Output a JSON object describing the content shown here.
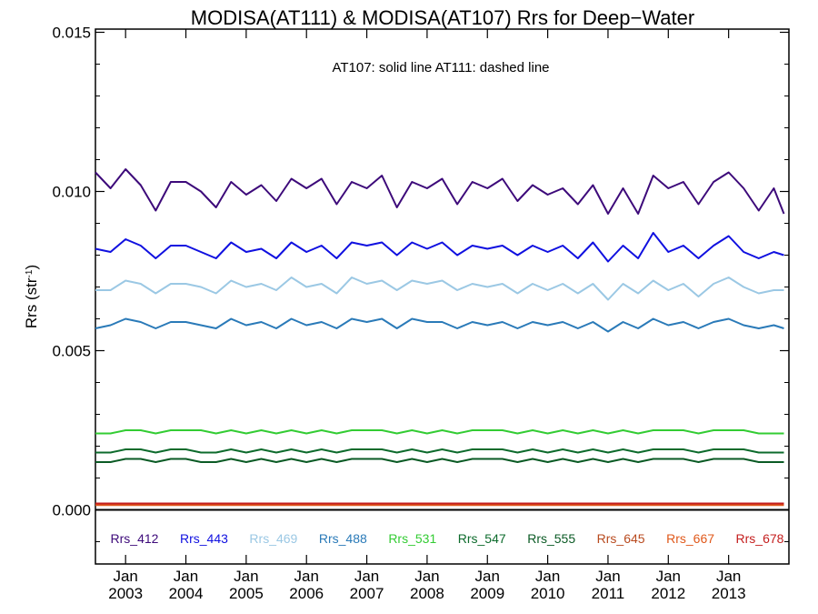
{
  "chart_data": {
    "type": "line",
    "title": "MODISA(AT111) & MODISA(AT107)  Rrs for Deep−Water",
    "ylabel": "Rrs (str",
    "ylabel_sup": "-1",
    "ylabel_close": ")",
    "annotation": "AT107: solid line   AT111: dashed line",
    "ylim": [
      -0.0017,
      0.0151
    ],
    "yticks": [
      0.0,
      0.005,
      0.01,
      0.015
    ],
    "ytick_labels": [
      "0.000",
      "0.005",
      "0.010",
      "0.015"
    ],
    "xlim": [
      "2002-07",
      "2014-01"
    ],
    "xticks": [
      {
        "date": "2003-01",
        "month": "Jan",
        "year": "2003"
      },
      {
        "date": "2004-01",
        "month": "Jan",
        "year": "2004"
      },
      {
        "date": "2005-01",
        "month": "Jan",
        "year": "2005"
      },
      {
        "date": "2006-01",
        "month": "Jan",
        "year": "2006"
      },
      {
        "date": "2007-01",
        "month": "Jan",
        "year": "2007"
      },
      {
        "date": "2008-01",
        "month": "Jan",
        "year": "2008"
      },
      {
        "date": "2009-01",
        "month": "Jan",
        "year": "2009"
      },
      {
        "date": "2010-01",
        "month": "Jan",
        "year": "2010"
      },
      {
        "date": "2011-01",
        "month": "Jan",
        "year": "2011"
      },
      {
        "date": "2012-01",
        "month": "Jan",
        "year": "2012"
      },
      {
        "date": "2013-01",
        "month": "Jan",
        "year": "2013"
      }
    ],
    "zero_line": 0.0,
    "x_dates": [
      "2002-07",
      "2002-10",
      "2003-01",
      "2003-04",
      "2003-07",
      "2003-10",
      "2004-01",
      "2004-04",
      "2004-07",
      "2004-10",
      "2005-01",
      "2005-04",
      "2005-07",
      "2005-10",
      "2006-01",
      "2006-04",
      "2006-07",
      "2006-10",
      "2007-01",
      "2007-04",
      "2007-07",
      "2007-10",
      "2008-01",
      "2008-04",
      "2008-07",
      "2008-10",
      "2009-01",
      "2009-04",
      "2009-07",
      "2009-10",
      "2010-01",
      "2010-04",
      "2010-07",
      "2010-10",
      "2011-01",
      "2011-04",
      "2011-07",
      "2011-10",
      "2012-01",
      "2012-04",
      "2012-07",
      "2012-10",
      "2013-01",
      "2013-04",
      "2013-07",
      "2013-10",
      "2013-12"
    ],
    "series": [
      {
        "name": "Rrs_412",
        "color": "#3d0a7a",
        "values": [
          0.0106,
          0.0101,
          0.0107,
          0.0102,
          0.0094,
          0.0103,
          0.0103,
          0.01,
          0.0095,
          0.0103,
          0.0099,
          0.0102,
          0.0097,
          0.0104,
          0.0101,
          0.0104,
          0.0096,
          0.0103,
          0.0101,
          0.0105,
          0.0095,
          0.0103,
          0.0101,
          0.0104,
          0.0096,
          0.0103,
          0.0101,
          0.0104,
          0.0097,
          0.0102,
          0.0099,
          0.0101,
          0.0096,
          0.0102,
          0.0093,
          0.0101,
          0.0093,
          0.0105,
          0.0101,
          0.0103,
          0.0096,
          0.0103,
          0.0106,
          0.0101,
          0.0094,
          0.0101,
          0.0093
        ]
      },
      {
        "name": "Rrs_443",
        "color": "#1010e0",
        "values": [
          0.0082,
          0.0081,
          0.0085,
          0.0083,
          0.0079,
          0.0083,
          0.0083,
          0.0081,
          0.0079,
          0.0084,
          0.0081,
          0.0082,
          0.0079,
          0.0084,
          0.0081,
          0.0083,
          0.0079,
          0.0084,
          0.0083,
          0.0084,
          0.008,
          0.0084,
          0.0082,
          0.0084,
          0.008,
          0.0083,
          0.0082,
          0.0083,
          0.008,
          0.0083,
          0.0081,
          0.0083,
          0.0079,
          0.0084,
          0.0078,
          0.0083,
          0.0079,
          0.0087,
          0.0081,
          0.0083,
          0.0079,
          0.0083,
          0.0086,
          0.0081,
          0.0079,
          0.0081,
          0.008
        ]
      },
      {
        "name": "Rrs_469",
        "color": "#9bc8e4",
        "values": [
          0.0069,
          0.0069,
          0.0072,
          0.0071,
          0.0068,
          0.0071,
          0.0071,
          0.007,
          0.0068,
          0.0072,
          0.007,
          0.0071,
          0.0069,
          0.0073,
          0.007,
          0.0071,
          0.0068,
          0.0073,
          0.0071,
          0.0072,
          0.0069,
          0.0072,
          0.0071,
          0.0072,
          0.0069,
          0.0071,
          0.007,
          0.0071,
          0.0068,
          0.0071,
          0.0069,
          0.0071,
          0.0068,
          0.0071,
          0.0066,
          0.0071,
          0.0068,
          0.0072,
          0.0069,
          0.0071,
          0.0067,
          0.0071,
          0.0073,
          0.007,
          0.0068,
          0.0069,
          0.0069
        ]
      },
      {
        "name": "Rrs_488",
        "color": "#2a7ab8",
        "values": [
          0.0057,
          0.0058,
          0.006,
          0.0059,
          0.0057,
          0.0059,
          0.0059,
          0.0058,
          0.0057,
          0.006,
          0.0058,
          0.0059,
          0.0057,
          0.006,
          0.0058,
          0.0059,
          0.0057,
          0.006,
          0.0059,
          0.006,
          0.0057,
          0.006,
          0.0059,
          0.0059,
          0.0057,
          0.0059,
          0.0058,
          0.0059,
          0.0057,
          0.0059,
          0.0058,
          0.0059,
          0.0057,
          0.0059,
          0.0056,
          0.0059,
          0.0057,
          0.006,
          0.0058,
          0.0059,
          0.0057,
          0.0059,
          0.006,
          0.0058,
          0.0057,
          0.0058,
          0.0057
        ]
      },
      {
        "name": "Rrs_531",
        "color": "#33cc33",
        "values": [
          0.0024,
          0.0024,
          0.0025,
          0.0025,
          0.0024,
          0.0025,
          0.0025,
          0.0025,
          0.0024,
          0.0025,
          0.0024,
          0.0025,
          0.0024,
          0.0025,
          0.0024,
          0.0025,
          0.0024,
          0.0025,
          0.0025,
          0.0025,
          0.0024,
          0.0025,
          0.0024,
          0.0025,
          0.0024,
          0.0025,
          0.0025,
          0.0025,
          0.0024,
          0.0025,
          0.0024,
          0.0025,
          0.0024,
          0.0025,
          0.0024,
          0.0025,
          0.0024,
          0.0025,
          0.0025,
          0.0025,
          0.0024,
          0.0025,
          0.0025,
          0.0025,
          0.0024,
          0.0024,
          0.0024
        ]
      },
      {
        "name": "Rrs_547",
        "color": "#0d6b2c",
        "values": [
          0.0018,
          0.0018,
          0.0019,
          0.0019,
          0.0018,
          0.0019,
          0.0019,
          0.0018,
          0.0018,
          0.0019,
          0.0018,
          0.0019,
          0.0018,
          0.0019,
          0.0018,
          0.0019,
          0.0018,
          0.0019,
          0.0019,
          0.0019,
          0.0018,
          0.0019,
          0.0018,
          0.0019,
          0.0018,
          0.0019,
          0.0019,
          0.0019,
          0.0018,
          0.0019,
          0.0018,
          0.0019,
          0.0018,
          0.0019,
          0.0018,
          0.0019,
          0.0018,
          0.0019,
          0.0019,
          0.0019,
          0.0018,
          0.0019,
          0.0019,
          0.0019,
          0.0018,
          0.0018,
          0.0018
        ]
      },
      {
        "name": "Rrs_555",
        "color": "#0a5a24",
        "values": [
          0.0015,
          0.0015,
          0.0016,
          0.0016,
          0.0015,
          0.0016,
          0.0016,
          0.0015,
          0.0015,
          0.0016,
          0.0015,
          0.0016,
          0.0015,
          0.0016,
          0.0015,
          0.0016,
          0.0015,
          0.0016,
          0.0016,
          0.0016,
          0.0015,
          0.0016,
          0.0015,
          0.0016,
          0.0015,
          0.0016,
          0.0016,
          0.0016,
          0.0015,
          0.0016,
          0.0015,
          0.0016,
          0.0015,
          0.0016,
          0.0015,
          0.0016,
          0.0015,
          0.0016,
          0.0016,
          0.0016,
          0.0015,
          0.0016,
          0.0016,
          0.0016,
          0.0015,
          0.0015,
          0.0015
        ]
      },
      {
        "name": "Rrs_645",
        "color": "#b84a1e",
        "values": [
          0.0002,
          0.0002,
          0.0002,
          0.0002,
          0.0002,
          0.0002,
          0.0002,
          0.0002,
          0.0002,
          0.0002,
          0.0002,
          0.0002,
          0.0002,
          0.0002,
          0.0002,
          0.0002,
          0.0002,
          0.0002,
          0.0002,
          0.0002,
          0.0002,
          0.0002,
          0.0002,
          0.0002,
          0.0002,
          0.0002,
          0.0002,
          0.0002,
          0.0002,
          0.0002,
          0.0002,
          0.0002,
          0.0002,
          0.0002,
          0.0002,
          0.0002,
          0.0002,
          0.0002,
          0.0002,
          0.0002,
          0.0002,
          0.0002,
          0.0002,
          0.0002,
          0.0002,
          0.0002,
          0.0002
        ]
      },
      {
        "name": "Rrs_667",
        "color": "#e0581a",
        "values": [
          0.00015,
          0.00015,
          0.00015,
          0.00015,
          0.00015,
          0.00015,
          0.00015,
          0.00015,
          0.00015,
          0.00015,
          0.00015,
          0.00015,
          0.00015,
          0.00015,
          0.00015,
          0.00015,
          0.00015,
          0.00015,
          0.00015,
          0.00015,
          0.00015,
          0.00015,
          0.00015,
          0.00015,
          0.00015,
          0.00015,
          0.00015,
          0.00015,
          0.00015,
          0.00015,
          0.00015,
          0.00015,
          0.00015,
          0.00015,
          0.00015,
          0.00015,
          0.00015,
          0.00015,
          0.00015,
          0.00015,
          0.00015,
          0.00015,
          0.00015,
          0.00015,
          0.00015,
          0.00015,
          0.00015
        ]
      },
      {
        "name": "Rrs_678",
        "color": "#c41e1e",
        "values": [
          0.0002,
          0.0002,
          0.0002,
          0.0002,
          0.0002,
          0.0002,
          0.0002,
          0.0002,
          0.0002,
          0.0002,
          0.0002,
          0.0002,
          0.0002,
          0.0002,
          0.0002,
          0.0002,
          0.0002,
          0.0002,
          0.0002,
          0.0002,
          0.0002,
          0.0002,
          0.0002,
          0.0002,
          0.0002,
          0.0002,
          0.0002,
          0.0002,
          0.0002,
          0.0002,
          0.0002,
          0.0002,
          0.0002,
          0.0002,
          0.0002,
          0.0002,
          0.0002,
          0.0002,
          0.0002,
          0.0002,
          0.0002,
          0.0002,
          0.0002,
          0.0002,
          0.0002,
          0.0002,
          0.0002
        ]
      }
    ],
    "grid": false,
    "legend_position": "bottom"
  }
}
